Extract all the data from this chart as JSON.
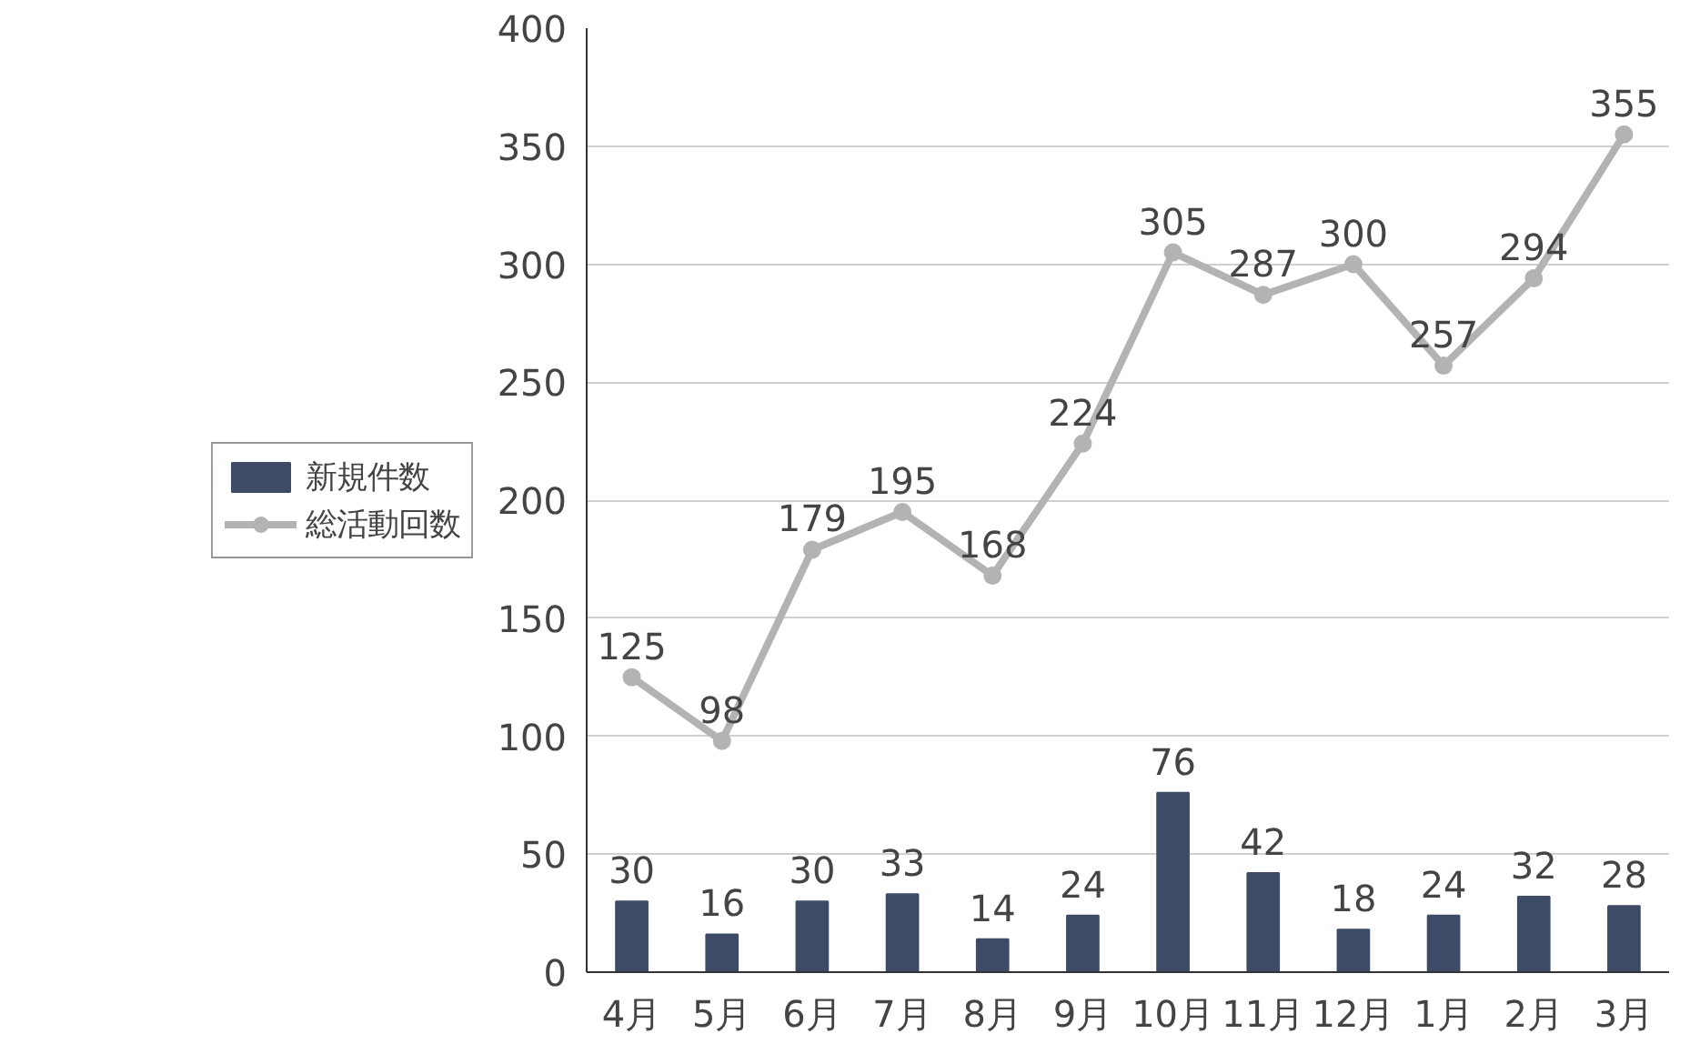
{
  "chart_data": {
    "type": "bar",
    "categories": [
      "4月",
      "5月",
      "6月",
      "7月",
      "8月",
      "9月",
      "10月",
      "11月",
      "12月",
      "1月",
      "2月",
      "3月"
    ],
    "series": [
      {
        "name": "新規件数",
        "color": "#3d4b66",
        "values": [
          30,
          16,
          30,
          33,
          14,
          24,
          76,
          42,
          18,
          24,
          32,
          28
        ]
      },
      {
        "name": "総活動回数",
        "type": "line",
        "color": "#b3b3b3",
        "values": [
          125,
          98,
          179,
          195,
          168,
          224,
          305,
          287,
          300,
          257,
          294,
          355
        ]
      }
    ],
    "ylim": [
      0,
      400
    ],
    "yticks": [
      0,
      50,
      100,
      150,
      200,
      250,
      300,
      350,
      400
    ],
    "grid": "y",
    "legend": "left",
    "marker": "circle",
    "line_style": "solid",
    "data_labels": true
  }
}
